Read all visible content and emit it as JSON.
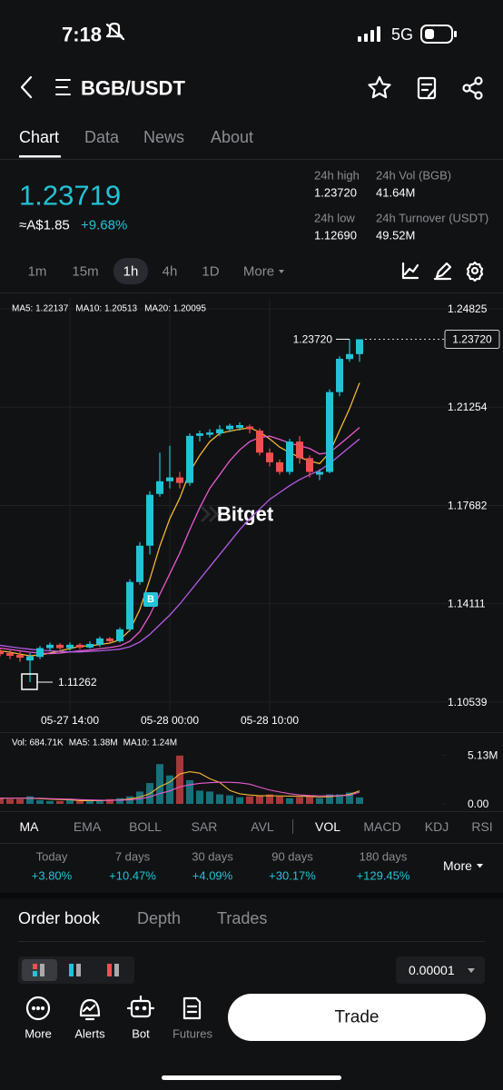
{
  "status_bar": {
    "time": "7:18",
    "network": "5G"
  },
  "header": {
    "title": "BGB/USDT"
  },
  "tabs": [
    "Chart",
    "Data",
    "News",
    "About"
  ],
  "price": {
    "last": "1.23719",
    "fiat": "≈A$1.85",
    "change": "+9.68%"
  },
  "stats": [
    {
      "label": "24h high",
      "value": "1.23720"
    },
    {
      "label": "24h Vol (BGB)",
      "value": "41.64M"
    },
    {
      "label": "24h low",
      "value": "1.12690"
    },
    {
      "label": "24h Turnover (USDT)",
      "value": "49.52M"
    }
  ],
  "intervals": [
    "1m",
    "15m",
    "1h",
    "4h",
    "1D",
    "More"
  ],
  "chart_data": {
    "type": "candlestick",
    "watermark": "Bitget",
    "trade_marker": "B",
    "categories": [
      null,
      null,
      null,
      null,
      null,
      null,
      null,
      "05-27 14:00",
      null,
      null,
      null,
      null,
      null,
      null,
      null,
      null,
      null,
      "05-28 00:00",
      null,
      null,
      null,
      null,
      null,
      null,
      null,
      null,
      null,
      "05-28 10:00",
      null,
      null,
      null,
      null,
      null,
      null,
      null,
      null,
      null
    ],
    "open": [
      1.124,
      1.1232,
      1.1225,
      1.1205,
      1.1218,
      1.125,
      1.1262,
      1.125,
      1.1262,
      1.1252,
      1.1262,
      1.1285,
      1.1275,
      1.1318,
      1.149,
      1.1622,
      1.181,
      1.1856,
      1.187,
      1.185,
      1.2021,
      1.2025,
      1.203,
      1.2045,
      1.205,
      1.2055,
      1.204,
      1.196,
      1.1925,
      1.189,
      1.2,
      1.194,
      1.188,
      1.189,
      1.218,
      1.23,
      1.2318
    ],
    "high": [
      1.125,
      1.1242,
      1.1238,
      1.1232,
      1.1258,
      1.127,
      1.1268,
      1.127,
      1.1268,
      1.1275,
      1.1292,
      1.129,
      1.1325,
      1.15,
      1.1635,
      1.182,
      1.196,
      1.1985,
      1.189,
      1.203,
      1.204,
      1.2045,
      1.206,
      1.2065,
      1.207,
      1.2062,
      1.2048,
      1.1975,
      1.1935,
      1.201,
      1.202,
      1.195,
      1.19,
      1.219,
      1.231,
      1.2372,
      1.2372
    ],
    "low": [
      1.122,
      1.121,
      1.12,
      1.11262,
      1.121,
      1.124,
      1.1245,
      1.124,
      1.1245,
      1.1248,
      1.1255,
      1.1265,
      1.127,
      1.131,
      1.148,
      1.159,
      1.18,
      1.183,
      1.183,
      1.184,
      1.2,
      1.2015,
      1.202,
      1.2035,
      1.204,
      1.203,
      1.195,
      1.191,
      1.188,
      1.188,
      1.192,
      1.187,
      1.186,
      1.1885,
      1.2165,
      1.229,
      1.229
    ],
    "close": [
      1.1228,
      1.1222,
      1.1215,
      1.122,
      1.125,
      1.1262,
      1.125,
      1.1262,
      1.1252,
      1.1265,
      1.1285,
      1.1275,
      1.1318,
      1.149,
      1.1622,
      1.1807,
      1.1856,
      1.187,
      1.185,
      1.2021,
      1.203,
      1.2033,
      1.2045,
      1.2058,
      1.206,
      1.2045,
      1.196,
      1.1925,
      1.189,
      1.2,
      1.194,
      1.189,
      1.189,
      1.218,
      1.2301,
      1.2318,
      1.23719
    ],
    "up_color": "#22c3d6",
    "down_color": "#f0504f",
    "ylim": [
      1.1014,
      1.2522
    ],
    "yticks": [
      1.24825,
      1.21254,
      1.17682,
      1.14111,
      1.10539
    ],
    "last_price": {
      "value": 1.2372,
      "label": "1.23720"
    },
    "max_label": {
      "value": 1.2372,
      "label": "1.23720"
    },
    "min_label": {
      "value": 1.11262,
      "label": "1.11262"
    },
    "ma_series": [
      {
        "name": "MA5: 1.22137",
        "color": "#f2b632",
        "values": [
          1.124,
          1.1235,
          1.1228,
          1.1222,
          1.1225,
          1.1232,
          1.124,
          1.1248,
          1.1257,
          1.1258,
          1.1263,
          1.1268,
          1.128,
          1.1315,
          1.139,
          1.15,
          1.162,
          1.172,
          1.1795,
          1.189,
          1.195,
          1.2,
          1.203,
          1.2038,
          1.2045,
          1.205,
          1.2035,
          1.201,
          1.198,
          1.196,
          1.1943,
          1.193,
          1.192,
          1.196,
          1.204,
          1.212,
          1.22137
        ]
      },
      {
        "name": "MA10: 1.20513",
        "color": "#e85ad0",
        "values": [
          1.125,
          1.1245,
          1.124,
          1.1235,
          1.1232,
          1.123,
          1.1232,
          1.1236,
          1.124,
          1.1243,
          1.1248,
          1.1252,
          1.1258,
          1.1275,
          1.131,
          1.137,
          1.1445,
          1.152,
          1.1595,
          1.168,
          1.176,
          1.183,
          1.188,
          1.193,
          1.197,
          1.2,
          1.2015,
          1.202,
          1.2008,
          1.1995,
          1.1985,
          1.1975,
          1.1955,
          1.196,
          1.199,
          1.202,
          1.20513
        ]
      },
      {
        "name": "MA20: 1.20095",
        "color": "#b45ce6",
        "values": [
          1.126,
          1.1255,
          1.125,
          1.1246,
          1.1242,
          1.124,
          1.1238,
          1.1236,
          1.1236,
          1.1238,
          1.124,
          1.1243,
          1.1246,
          1.1255,
          1.1272,
          1.13,
          1.1335,
          1.137,
          1.141,
          1.1455,
          1.15,
          1.1545,
          1.159,
          1.1635,
          1.168,
          1.172,
          1.1755,
          1.179,
          1.1815,
          1.184,
          1.1862,
          1.188,
          1.1895,
          1.192,
          1.195,
          1.198,
          1.20095
        ]
      }
    ],
    "volume": {
      "name": "Vol: 684.71K",
      "color": "#f2b632",
      "up_color": "#17707a",
      "down_color": "#a6383a",
      "values": [
        0.6,
        0.5,
        0.5,
        0.8,
        0.4,
        0.3,
        0.3,
        0.4,
        0.3,
        0.3,
        0.4,
        0.5,
        0.6,
        0.8,
        1.3,
        2.2,
        4.2,
        3.0,
        5.1,
        2.5,
        1.4,
        1.3,
        1.0,
        0.9,
        0.7,
        0.8,
        0.9,
        1.0,
        0.8,
        0.6,
        0.7,
        0.9,
        0.6,
        1.0,
        1.0,
        1.2,
        0.68471
      ],
      "ylim": [
        0,
        7
      ],
      "yticks": [
        {
          "value": 5.13,
          "label": "5.13M"
        },
        {
          "value": 0,
          "label": "0.00"
        }
      ],
      "ma_series": [
        {
          "name": "MA5: 1.38M",
          "color": "#f2b632",
          "values": [
            0.6,
            0.6,
            0.6,
            0.6,
            0.56,
            0.5,
            0.46,
            0.44,
            0.34,
            0.34,
            0.34,
            0.38,
            0.42,
            0.52,
            0.72,
            1.08,
            1.82,
            2.3,
            3.16,
            3.4,
            3.24,
            2.66,
            2.26,
            1.42,
            1.06,
            0.94,
            0.86,
            0.86,
            0.84,
            0.82,
            0.8,
            0.8,
            0.72,
            0.76,
            0.84,
            1.0,
            1.38
          ]
        },
        {
          "name": "MA10: 1.24M",
          "color": "#e85ad0",
          "values": [
            0.6,
            0.6,
            0.6,
            0.6,
            0.6,
            0.55,
            0.52,
            0.5,
            0.45,
            0.42,
            0.39,
            0.38,
            0.39,
            0.43,
            0.53,
            0.73,
            1.1,
            1.36,
            1.8,
            2.02,
            2.16,
            2.24,
            2.28,
            2.28,
            2.22,
            2.08,
            1.76,
            1.46,
            1.26,
            1.07,
            0.94,
            0.88,
            0.85,
            0.86,
            0.86,
            0.9,
            1.24
          ]
        }
      ]
    }
  },
  "indicators": [
    "MA",
    "EMA",
    "BOLL",
    "SAR",
    "AVL",
    "VOL",
    "MACD",
    "KDJ",
    "RSI"
  ],
  "performance": [
    {
      "label": "Today",
      "value": "+3.80%"
    },
    {
      "label": "7 days",
      "value": "+10.47%"
    },
    {
      "label": "30 days",
      "value": "+4.09%"
    },
    {
      "label": "90 days",
      "value": "+30.17%"
    },
    {
      "label": "180 days",
      "value": "+129.45%"
    }
  ],
  "performance_more": "More",
  "orderbook": {
    "tabs": [
      "Order book",
      "Depth",
      "Trades"
    ],
    "precision": "0.00001"
  },
  "bottom_bar": {
    "items": [
      "More",
      "Alerts",
      "Bot",
      "Futures"
    ],
    "trade": "Trade"
  }
}
